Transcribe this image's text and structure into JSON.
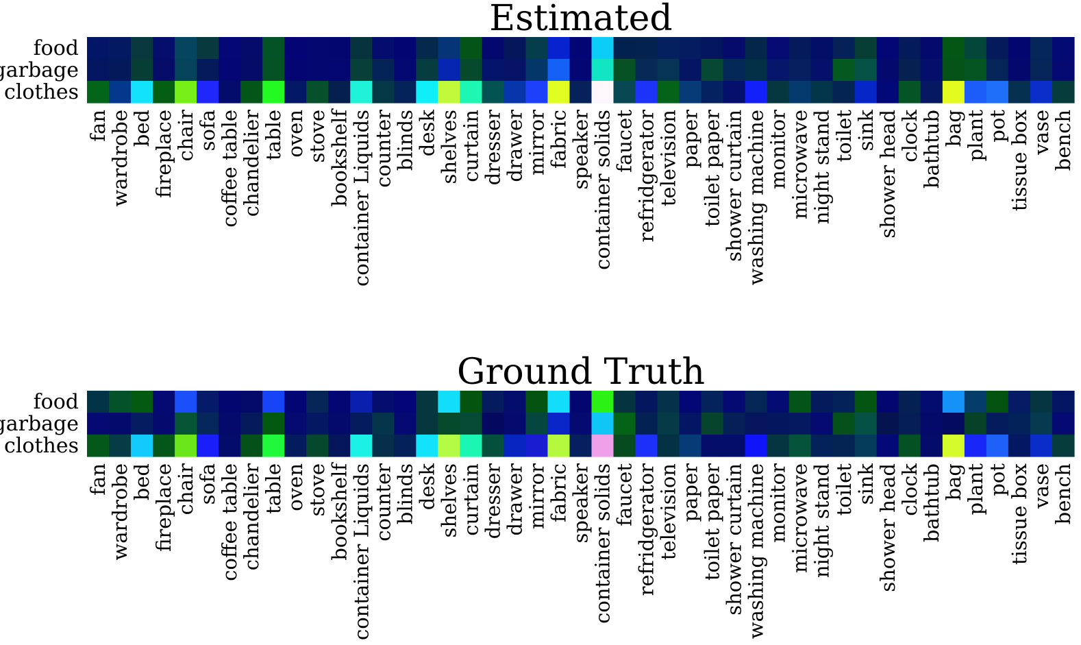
{
  "chart_data": [
    {
      "type": "heatmap",
      "title": "Estimated",
      "rows": [
        "food",
        "garbage",
        "clothes"
      ],
      "columns": [
        "fan",
        "wardrobe",
        "bed",
        "fireplace",
        "chair",
        "sofa",
        "coffee table",
        "chandelier",
        "table",
        "oven",
        "stove",
        "bookshelf",
        "container Liquids",
        "counter",
        "blinds",
        "desk",
        "shelves",
        "curtain",
        "dresser",
        "drawer",
        "mirror",
        "fabric",
        "speaker",
        "container solids",
        "faucet",
        "refridgerator",
        "television",
        "paper",
        "toilet paper",
        "shower curtain",
        "washing machine",
        "monitor",
        "microwave",
        "night stand",
        "toilet",
        "sink",
        "shower head",
        "clock",
        "bathtub",
        "bag",
        "plant",
        "pot",
        "tissue box",
        "vase",
        "bench"
      ],
      "cell_colors": [
        [
          "#021566",
          "#031a63",
          "#08373d",
          "#050e6b",
          "#064560",
          "#07393f",
          "#040775",
          "#040b6b",
          "#045327",
          "#040475",
          "#040770",
          "#040670",
          "#07333f",
          "#040c6e",
          "#030573",
          "#04294d",
          "#053576",
          "#045418",
          "#04086e",
          "#041559",
          "#053d4d",
          "#0723cf",
          "#030575",
          "#0bcdf8",
          "#03214e",
          "#03234e",
          "#04205e",
          "#041c60",
          "#04155f",
          "#040b6b",
          "#04264a",
          "#050b72",
          "#041a5b",
          "#030f66",
          "#042158",
          "#063e36",
          "#030775",
          "#031a5b",
          "#040a6b",
          "#045614",
          "#05463a",
          "#041a5a",
          "#040670",
          "#04265a",
          "#040a73"
        ],
        [
          "#031461",
          "#04195a",
          "#063d35",
          "#050d68",
          "#05435a",
          "#041a5b",
          "#040675",
          "#040c68",
          "#055324",
          "#040473",
          "#040770",
          "#040772",
          "#074038",
          "#042458",
          "#030872",
          "#053d40",
          "#0626b2",
          "#064a2d",
          "#04136a",
          "#061265",
          "#05366a",
          "#1560f5",
          "#030673",
          "#12e5c3",
          "#065225",
          "#062a55",
          "#063454",
          "#051564",
          "#064833",
          "#042959",
          "#033046",
          "#06166b",
          "#061f5e",
          "#04106a",
          "#045921",
          "#055246",
          "#04096d",
          "#042151",
          "#040e6b",
          "#055317",
          "#055523",
          "#052458",
          "#04086d",
          "#052558",
          "#040a71"
        ],
        [
          "#03651a",
          "#03388d",
          "#13e2fb",
          "#045f12",
          "#76f017",
          "#1f27fa",
          "#040c6b",
          "#045518",
          "#22fa21",
          "#041965",
          "#06502b",
          "#05204f",
          "#1ff2d6",
          "#053847",
          "#04235a",
          "#10eef8",
          "#c2fa3b",
          "#1ef6b3",
          "#045353",
          "#0736aa",
          "#1f40fa",
          "#e1fe22",
          "#07225a",
          "#fdf6fb",
          "#074852",
          "#1e33f8",
          "#046219",
          "#063b78",
          "#04225f",
          "#04106b",
          "#1420f9",
          "#053740",
          "#043a6e",
          "#04364b",
          "#042454",
          "#0726c8",
          "#030879",
          "#045426",
          "#051861",
          "#e3fb1e",
          "#1c5cf8",
          "#1f6ff9",
          "#05304f",
          "#0c2ec8",
          "#063c3b"
        ]
      ]
    },
    {
      "type": "heatmap",
      "title": "Ground Truth",
      "rows": [
        "food",
        "garbage",
        "clothes"
      ],
      "columns": [
        "fan",
        "wardrobe",
        "bed",
        "fireplace",
        "chair",
        "sofa",
        "coffee table",
        "chandelier",
        "table",
        "oven",
        "stove",
        "bookshelf",
        "container Liquids",
        "counter",
        "blinds",
        "desk",
        "shelves",
        "curtain",
        "dresser",
        "drawer",
        "mirror",
        "fabric",
        "speaker",
        "container solids",
        "faucet",
        "refridgerator",
        "television",
        "paper",
        "toilet paper",
        "shower curtain",
        "washing machine",
        "monitor",
        "microwave",
        "night stand",
        "toilet",
        "sink",
        "shower head",
        "clock",
        "bathtub",
        "bag",
        "plant",
        "pot",
        "tissue box",
        "vase",
        "bench"
      ],
      "cell_colors": [
        [
          "#033346",
          "#045229",
          "#045a10",
          "#050a73",
          "#1a4ff9",
          "#061a6a",
          "#040670",
          "#040a6a",
          "#1844f8",
          "#040575",
          "#052556",
          "#040773",
          "#0a1fae",
          "#050e6e",
          "#040576",
          "#06373f",
          "#13defa",
          "#04540f",
          "#041c5e",
          "#040c6c",
          "#04520f",
          "#12ddfb",
          "#030671",
          "#2bf214",
          "#053340",
          "#04165e",
          "#05314a",
          "#030776",
          "#04225c",
          "#040a72",
          "#042656",
          "#040b73",
          "#04541a",
          "#041a5b",
          "#04225a",
          "#045512",
          "#040670",
          "#042154",
          "#040c70",
          "#1592f8",
          "#053d6a",
          "#045210",
          "#061b64",
          "#053541",
          "#031462"
        ],
        [
          "#040a71",
          "#040a6c",
          "#041c60",
          "#040a6e",
          "#065537",
          "#05275b",
          "#040a6c",
          "#041a5b",
          "#045910",
          "#040a70",
          "#041762",
          "#040a6c",
          "#041c5e",
          "#05354a",
          "#040a71",
          "#06373f",
          "#054a2a",
          "#054a34",
          "#04085f",
          "#040a6e",
          "#05473f",
          "#0a25c8",
          "#040a70",
          "#0fc6f6",
          "#046317",
          "#042154",
          "#053a47",
          "#041565",
          "#06442d",
          "#042056",
          "#05145d",
          "#04165e",
          "#041960",
          "#040a70",
          "#06501c",
          "#055145",
          "#05134f",
          "#051e55",
          "#040a6a",
          "#040a60",
          "#064228",
          "#041c5c",
          "#04225a",
          "#053a50",
          "#040a72"
        ],
        [
          "#04581a",
          "#053c45",
          "#12cafb",
          "#045718",
          "#6ae61a",
          "#1a1ff9",
          "#040c6b",
          "#04521a",
          "#20f93b",
          "#041b5d",
          "#05482d",
          "#04155a",
          "#1cf1e6",
          "#052f4b",
          "#04215a",
          "#12e3fa",
          "#b4fb46",
          "#1cf6b3",
          "#04503d",
          "#0726c0",
          "#1a1cd1",
          "#b4f93e",
          "#06205f",
          "#eea1e8",
          "#064a1f",
          "#1d30f9",
          "#053144",
          "#063b78",
          "#040d6a",
          "#040d6a",
          "#1014f9",
          "#053540",
          "#06533b",
          "#04225a",
          "#042454",
          "#053c5b",
          "#030a78",
          "#045224",
          "#040c6a",
          "#d6fb2c",
          "#1827f8",
          "#1f60f9",
          "#041762",
          "#0a2cc8",
          "#063c3b"
        ]
      ]
    }
  ]
}
